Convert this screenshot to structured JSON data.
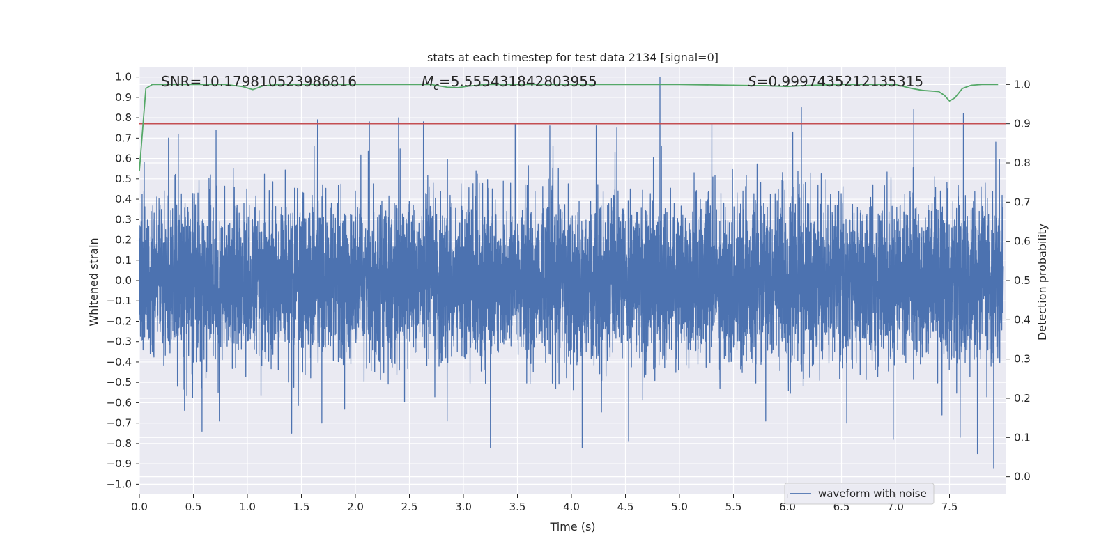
{
  "chart_data": {
    "type": "line",
    "title": "stats at each timestep for test data 2134 [signal=0]",
    "xlabel": "Time (s)",
    "ylabel": "Whitened strain",
    "y2label": "Detection probability",
    "xlim": [
      0.0,
      8.0
    ],
    "ylim": [
      -1.05,
      1.05
    ],
    "y2lim": [
      -0.045,
      1.045
    ],
    "xticks": [
      "0.0",
      "0.5",
      "1.0",
      "1.5",
      "2.0",
      "2.5",
      "3.0",
      "3.5",
      "4.0",
      "4.5",
      "5.0",
      "5.5",
      "6.0",
      "6.5",
      "7.0",
      "7.5"
    ],
    "yticks": [
      "-1.0",
      "-0.9",
      "-0.8",
      "-0.7",
      "-0.6",
      "-0.5",
      "-0.4",
      "-0.3",
      "-0.2",
      "-0.1",
      "0.0",
      "0.1",
      "0.2",
      "0.3",
      "0.4",
      "0.5",
      "0.6",
      "0.7",
      "0.8",
      "0.9",
      "1.0"
    ],
    "y2ticks": [
      "0.0",
      "0.1",
      "0.2",
      "0.3",
      "0.4",
      "0.5",
      "0.6",
      "0.7",
      "0.8",
      "0.9",
      "1.0"
    ],
    "annotations": {
      "snr": "SNR=10.179810523986816",
      "mc_symbol": "M",
      "mc_sub": "c",
      "mc_value": "=5.555431842803955",
      "s_symbol": "S",
      "s_value": "=0.9997435212135315"
    },
    "legend": {
      "label": "waveform with noise",
      "loc": "lower-right"
    },
    "threshold": {
      "value": 0.9,
      "axis": "y2",
      "color": "#c44e52"
    },
    "waveform": {
      "name": "waveform with noise",
      "color": "#4c72b0",
      "samples": 8192,
      "duration": 8.0,
      "noise_sigma": 0.19,
      "peaks": [
        {
          "t": 0.27,
          "v": 0.7
        },
        {
          "t": 0.36,
          "v": 0.72
        },
        {
          "t": 0.58,
          "v": -0.74
        },
        {
          "t": 0.71,
          "v": 0.74
        },
        {
          "t": 0.74,
          "v": -0.69
        },
        {
          "t": 1.41,
          "v": -0.75
        },
        {
          "t": 1.65,
          "v": 0.79
        },
        {
          "t": 1.69,
          "v": -0.7
        },
        {
          "t": 2.13,
          "v": 0.78
        },
        {
          "t": 2.4,
          "v": 0.8
        },
        {
          "t": 2.63,
          "v": 0.78
        },
        {
          "t": 2.85,
          "v": -0.69
        },
        {
          "t": 3.25,
          "v": -0.82
        },
        {
          "t": 3.48,
          "v": 0.77
        },
        {
          "t": 3.8,
          "v": 0.76
        },
        {
          "t": 4.1,
          "v": -0.82
        },
        {
          "t": 4.23,
          "v": 0.76
        },
        {
          "t": 4.42,
          "v": 0.75
        },
        {
          "t": 4.53,
          "v": -0.79
        },
        {
          "t": 4.82,
          "v": 1.0
        },
        {
          "t": 5.3,
          "v": 0.77
        },
        {
          "t": 5.8,
          "v": -0.69
        },
        {
          "t": 6.05,
          "v": 0.73
        },
        {
          "t": 6.05,
          "v": 0.73
        },
        {
          "t": 6.13,
          "v": 0.85
        },
        {
          "t": 6.55,
          "v": -0.7
        },
        {
          "t": 6.98,
          "v": -0.78
        },
        {
          "t": 7.17,
          "v": 0.84
        },
        {
          "t": 7.6,
          "v": -0.77
        },
        {
          "t": 7.63,
          "v": 0.82
        },
        {
          "t": 7.76,
          "v": -0.85
        },
        {
          "t": 7.91,
          "v": -0.92
        },
        {
          "t": 7.93,
          "v": 0.68
        }
      ]
    },
    "probability": {
      "name": "detection probability",
      "color": "#55a868",
      "t": [
        0.0,
        0.06,
        0.12,
        0.2,
        0.5,
        0.8,
        0.95,
        1.05,
        1.15,
        1.3,
        2.0,
        2.7,
        2.85,
        2.95,
        3.05,
        3.2,
        3.5,
        5.0,
        5.8,
        6.0,
        6.2,
        6.5,
        7.0,
        7.15,
        7.25,
        7.4,
        7.45,
        7.5,
        7.55,
        7.62,
        7.7,
        7.8,
        7.9,
        7.95
      ],
      "p": [
        0.78,
        0.99,
        1.0,
        1.0,
        1.0,
        1.0,
        0.995,
        0.987,
        0.997,
        1.0,
        1.0,
        1.0,
        0.993,
        0.992,
        0.996,
        1.0,
        1.0,
        1.0,
        0.997,
        0.995,
        0.998,
        1.0,
        1.0,
        0.99,
        0.985,
        0.982,
        0.973,
        0.958,
        0.966,
        0.99,
        0.998,
        1.0,
        1.0,
        1.0
      ]
    }
  }
}
